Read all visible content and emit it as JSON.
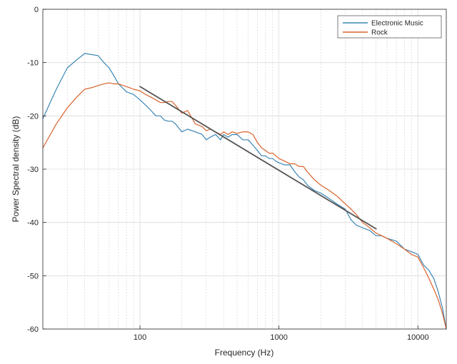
{
  "chart_data": {
    "type": "line",
    "xlabel": "Frequency (Hz)",
    "ylabel": "Power Spectral density (dB)",
    "x_scale": "log",
    "xlim": [
      20,
      16000
    ],
    "ylim": [
      -60,
      0
    ],
    "x_ticks": [
      100,
      1000,
      10000
    ],
    "x_tick_labels": [
      "100",
      "1000",
      "10000"
    ],
    "y_ticks": [
      0,
      -10,
      -20,
      -30,
      -40,
      -50,
      -60
    ],
    "y_tick_labels": [
      "0",
      "-10",
      "-20",
      "-30",
      "-40",
      "-50",
      "-60"
    ],
    "grid": true,
    "minor_grid": true,
    "legend_position": "top-right",
    "series": [
      {
        "name": "Electronic Music",
        "color": "#3a86b4",
        "x": [
          20,
          25,
          30,
          35,
          40,
          45,
          50,
          55,
          60,
          65,
          70,
          80,
          90,
          100,
          110,
          120,
          130,
          140,
          150,
          160,
          170,
          180,
          200,
          220,
          250,
          280,
          300,
          320,
          350,
          380,
          400,
          430,
          460,
          500,
          550,
          600,
          650,
          700,
          750,
          800,
          850,
          900,
          950,
          1000,
          1100,
          1200,
          1300,
          1400,
          1500,
          1600,
          1800,
          2000,
          2300,
          2600,
          3000,
          3300,
          3600,
          4000,
          4500,
          5000,
          5500,
          6000,
          7000,
          8000,
          9000,
          10000,
          11000,
          12000,
          13000,
          14000,
          15000,
          16000
        ],
        "y": [
          -20.5,
          -15,
          -11,
          -9.5,
          -8.3,
          -8.5,
          -8.7,
          -10,
          -11,
          -12.5,
          -14,
          -15.5,
          -16,
          -17,
          -18,
          -19,
          -20,
          -20,
          -20.8,
          -21,
          -21,
          -21.5,
          -23,
          -22.5,
          -23,
          -23.5,
          -24.5,
          -24,
          -23.5,
          -24.5,
          -23.5,
          -24,
          -23.5,
          -23.5,
          -24.5,
          -24.5,
          -25.5,
          -26.5,
          -27.5,
          -27.5,
          -28,
          -28,
          -28.5,
          -28.8,
          -29.2,
          -29.2,
          -30.5,
          -31.5,
          -32,
          -33,
          -34,
          -34.5,
          -35.5,
          -36.5,
          -37.5,
          -39.5,
          -40.5,
          -41,
          -41.5,
          -42.5,
          -42.5,
          -43,
          -43.5,
          -45,
          -45.5,
          -46,
          -48,
          -49,
          -50.5,
          -53,
          -56,
          -60
        ]
      },
      {
        "name": "Rock",
        "color": "#d9622b",
        "x": [
          20,
          25,
          30,
          35,
          40,
          45,
          50,
          55,
          60,
          65,
          70,
          80,
          90,
          100,
          110,
          120,
          130,
          140,
          150,
          160,
          170,
          180,
          200,
          220,
          250,
          280,
          300,
          320,
          350,
          380,
          400,
          430,
          460,
          500,
          550,
          600,
          650,
          700,
          750,
          800,
          850,
          900,
          950,
          1000,
          1100,
          1200,
          1300,
          1400,
          1500,
          1600,
          1800,
          2000,
          2300,
          2600,
          3000,
          3300,
          3600,
          4000,
          4500,
          5000,
          5500,
          6000,
          7000,
          8000,
          9000,
          10000,
          11000,
          12000,
          13000,
          14000,
          15000,
          16000
        ],
        "y": [
          -26,
          -21.5,
          -18.5,
          -16.5,
          -15,
          -14.7,
          -14.3,
          -14,
          -13.8,
          -14,
          -14,
          -14.5,
          -15,
          -15.3,
          -16,
          -16.5,
          -17,
          -17.5,
          -17.5,
          -17.3,
          -17.3,
          -18,
          -19.5,
          -19,
          -21.5,
          -22,
          -22.8,
          -22.5,
          -23,
          -23.5,
          -23,
          -23.5,
          -23,
          -23.3,
          -23,
          -23,
          -23.5,
          -25,
          -26,
          -26.5,
          -27,
          -27,
          -27.5,
          -28,
          -28.5,
          -29,
          -29,
          -29.5,
          -29.5,
          -30.5,
          -32,
          -33,
          -34,
          -35,
          -36.5,
          -37.5,
          -38.5,
          -40,
          -41,
          -42,
          -42.5,
          -43,
          -44,
          -45,
          -46,
          -46.5,
          -48.5,
          -50.5,
          -52.5,
          -54.5,
          -57,
          -60
        ]
      },
      {
        "color": "#555555",
        "x": [
          100,
          5000
        ],
        "y": [
          -14.5,
          -41.2
        ]
      }
    ]
  }
}
